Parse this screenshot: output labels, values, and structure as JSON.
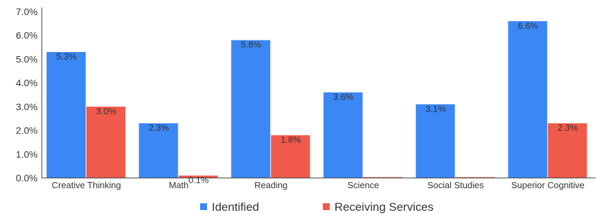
{
  "chart_data": {
    "type": "bar",
    "categories": [
      "Creative Thinking",
      "Math",
      "Reading",
      "Science",
      "Social Studies",
      "Superior Cognitive"
    ],
    "series": [
      {
        "name": "Identified",
        "color": "#3b87f5",
        "values": [
          5.3,
          2.3,
          5.8,
          3.6,
          3.1,
          6.6
        ],
        "labels": [
          "5.3%",
          "2.3%",
          "5.8%",
          "3.6%",
          "3.1%",
          "6.6%"
        ]
      },
      {
        "name": "Receiving Services",
        "color": "#f05a4b",
        "values": [
          3.0,
          0.1,
          1.8,
          0.0,
          0.0,
          2.3
        ],
        "labels": [
          "3.0%",
          "0.1%",
          "1.8%",
          "",
          "",
          "2.3%"
        ]
      }
    ],
    "ylim": [
      0,
      7
    ],
    "yticks": [
      "0.0%",
      "1.0%",
      "2.0%",
      "3.0%",
      "4.0%",
      "5.0%",
      "6.0%",
      "7.0%"
    ],
    "grid": false,
    "legend_position": "bottom"
  }
}
